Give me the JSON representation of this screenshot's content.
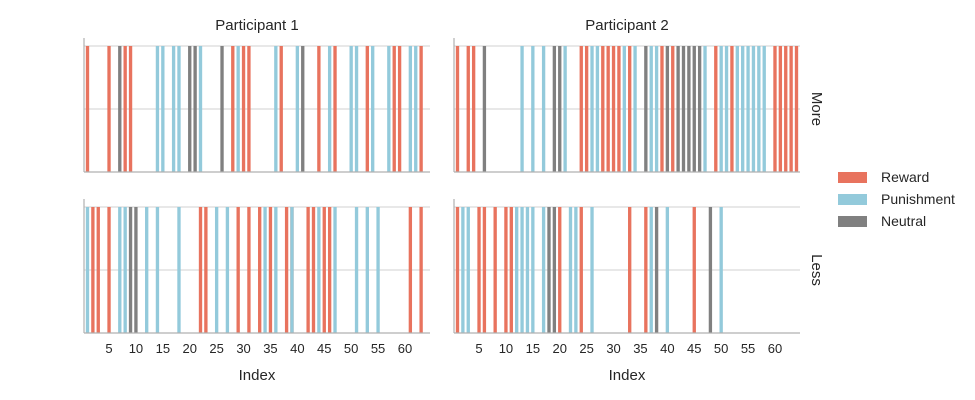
{
  "chart_data": {
    "type": "bar",
    "layout": "facet-grid",
    "xlabel": "Index",
    "x_ticks": [
      5,
      10,
      15,
      20,
      25,
      30,
      35,
      40,
      45,
      50,
      55,
      60
    ],
    "x_range": [
      1,
      64
    ],
    "y_range": [
      0,
      1
    ],
    "grid": "horizontal",
    "legend": {
      "position": "right",
      "entries": [
        {
          "name": "Reward",
          "color": "#E8735E"
        },
        {
          "name": "Punishment",
          "color": "#93CADB"
        },
        {
          "name": "Neutral",
          "color": "#808080"
        }
      ]
    },
    "columns": [
      "Participant 1",
      "Participant 2"
    ],
    "rows": [
      "More",
      "Less"
    ],
    "panels": [
      {
        "column": "Participant 1",
        "row": "More",
        "Reward": [
          1,
          5,
          8,
          9,
          28,
          30,
          31,
          37,
          44,
          47,
          53,
          58,
          59,
          63
        ],
        "Punishment": [
          14,
          15,
          17,
          18,
          22,
          29,
          36,
          40,
          46,
          50,
          51,
          54,
          57,
          61,
          62
        ],
        "Neutral": [
          7,
          20,
          21,
          26,
          41
        ]
      },
      {
        "column": "Participant 1",
        "row": "Less",
        "Reward": [
          2,
          3,
          5,
          22,
          23,
          29,
          31,
          33,
          35,
          38,
          39,
          42,
          43,
          45,
          46,
          61,
          63
        ],
        "Punishment": [
          1,
          7,
          8,
          12,
          14,
          18,
          25,
          27,
          34,
          36,
          39,
          44,
          47,
          51,
          53,
          55
        ],
        "Neutral": [
          9,
          10
        ]
      },
      {
        "column": "Participant 2",
        "row": "More",
        "Reward": [
          1,
          3,
          4,
          24,
          25,
          28,
          29,
          30,
          31,
          33,
          39,
          41,
          49,
          52,
          60,
          61,
          62,
          63,
          64
        ],
        "Punishment": [
          13,
          15,
          17,
          21,
          26,
          27,
          32,
          34,
          37,
          38,
          47,
          50,
          51,
          53,
          54,
          55,
          56,
          57,
          58
        ],
        "Neutral": [
          6,
          19,
          20,
          36,
          40,
          42,
          43,
          44,
          45,
          46
        ]
      },
      {
        "column": "Participant 2",
        "row": "Less",
        "Reward": [
          1,
          5,
          6,
          8,
          10,
          11,
          20,
          24,
          33,
          36,
          45
        ],
        "Punishment": [
          2,
          3,
          12,
          13,
          14,
          15,
          17,
          22,
          23,
          26,
          37,
          40,
          50
        ],
        "Neutral": [
          18,
          19,
          38,
          48
        ]
      }
    ]
  }
}
